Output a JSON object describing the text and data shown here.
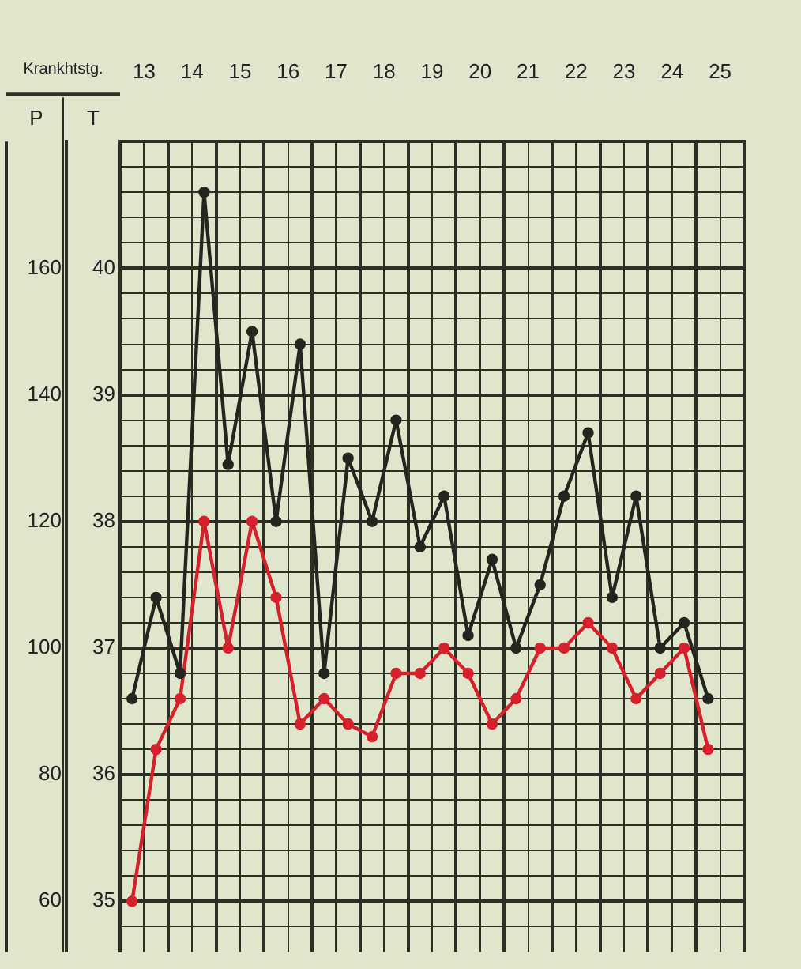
{
  "chart_data": {
    "type": "line",
    "xlabel": "Krankhtstg.",
    "ylabel": "P",
    "y2label": "T",
    "x": [
      12.75,
      13.25,
      13.75,
      14.25,
      14.75,
      15.25,
      15.75,
      16.25,
      16.75,
      17.25,
      17.75,
      18.25,
      18.75,
      19.25,
      19.75,
      20.25,
      20.75,
      21.25,
      21.75,
      22.25,
      22.75,
      23.25,
      23.75,
      24.25,
      24.75
    ],
    "series": [
      {
        "color": "#23261f",
        "values": [
          92,
          108,
          96,
          172,
          129,
          150,
          120,
          148,
          96,
          130,
          120,
          136,
          116,
          124,
          102,
          114,
          100,
          110,
          124,
          134,
          108,
          124,
          100,
          104,
          92
        ]
      },
      {
        "color": "#d6202c",
        "axis": "y2",
        "values": [
          35.0,
          36.2,
          36.6,
          38.0,
          37.0,
          38.0,
          37.4,
          36.4,
          36.6,
          36.4,
          36.3,
          36.8,
          36.8,
          37.0,
          36.8,
          36.4,
          36.6,
          37.0,
          37.0,
          37.2,
          37.0,
          36.6,
          36.8,
          37.0,
          36.2
        ]
      }
    ],
    "xlim": [
      12.5,
      25.5
    ],
    "xticks": [
      {
        "value": 12.5,
        "label": null
      },
      13,
      {
        "value": 13.5,
        "label": null
      },
      14,
      {
        "value": 14.5,
        "label": null
      },
      15,
      {
        "value": 15.5,
        "label": null
      },
      16,
      {
        "value": 16.5,
        "label": null
      },
      17,
      {
        "value": 17.5,
        "label": null
      },
      18,
      {
        "value": 18.5,
        "label": null
      },
      19,
      {
        "value": 19.5,
        "label": null
      },
      20,
      {
        "value": 20.5,
        "label": null
      },
      21,
      {
        "value": 21.5,
        "label": null
      },
      22,
      {
        "value": 22.5,
        "label": null
      },
      23,
      {
        "value": 23.5,
        "label": null
      },
      24,
      {
        "value": 24.5,
        "label": null
      },
      25,
      {
        "value": 25.5,
        "label": null
      }
    ],
    "ylim": [
      52,
      180
    ],
    "yticks": [
      {
        "value": 56,
        "label": null
      },
      60,
      {
        "value": 64,
        "label": null
      },
      {
        "value": 68,
        "label": null
      },
      {
        "value": 72,
        "label": null
      },
      {
        "value": 76,
        "label": null
      },
      80,
      {
        "value": 84,
        "label": null
      },
      {
        "value": 88,
        "label": null
      },
      {
        "value": 92,
        "label": null
      },
      {
        "value": 96,
        "label": null
      },
      100,
      {
        "value": 104,
        "label": null
      },
      {
        "value": 108,
        "label": null
      },
      {
        "value": 112,
        "label": null
      },
      {
        "value": 116,
        "label": null
      },
      120,
      {
        "value": 124,
        "label": null
      },
      {
        "value": 128,
        "label": null
      },
      {
        "value": 132,
        "label": null
      },
      {
        "value": 136,
        "label": null
      },
      140,
      {
        "value": 144,
        "label": null
      },
      {
        "value": 148,
        "label": null
      },
      {
        "value": 152,
        "label": null
      },
      {
        "value": 156,
        "label": null
      },
      160,
      {
        "value": 164,
        "label": null
      },
      {
        "value": 168,
        "label": null
      },
      {
        "value": 172,
        "label": null
      },
      {
        "value": 176,
        "label": null
      },
      {
        "value": 180,
        "label": null
      }
    ],
    "y2lim": [
      34.6,
      41
    ],
    "y2ticks": [
      35,
      36,
      37,
      38,
      39,
      40
    ],
    "grid": true,
    "legend": false,
    "marker": "circle",
    "line_style": "solid"
  }
}
